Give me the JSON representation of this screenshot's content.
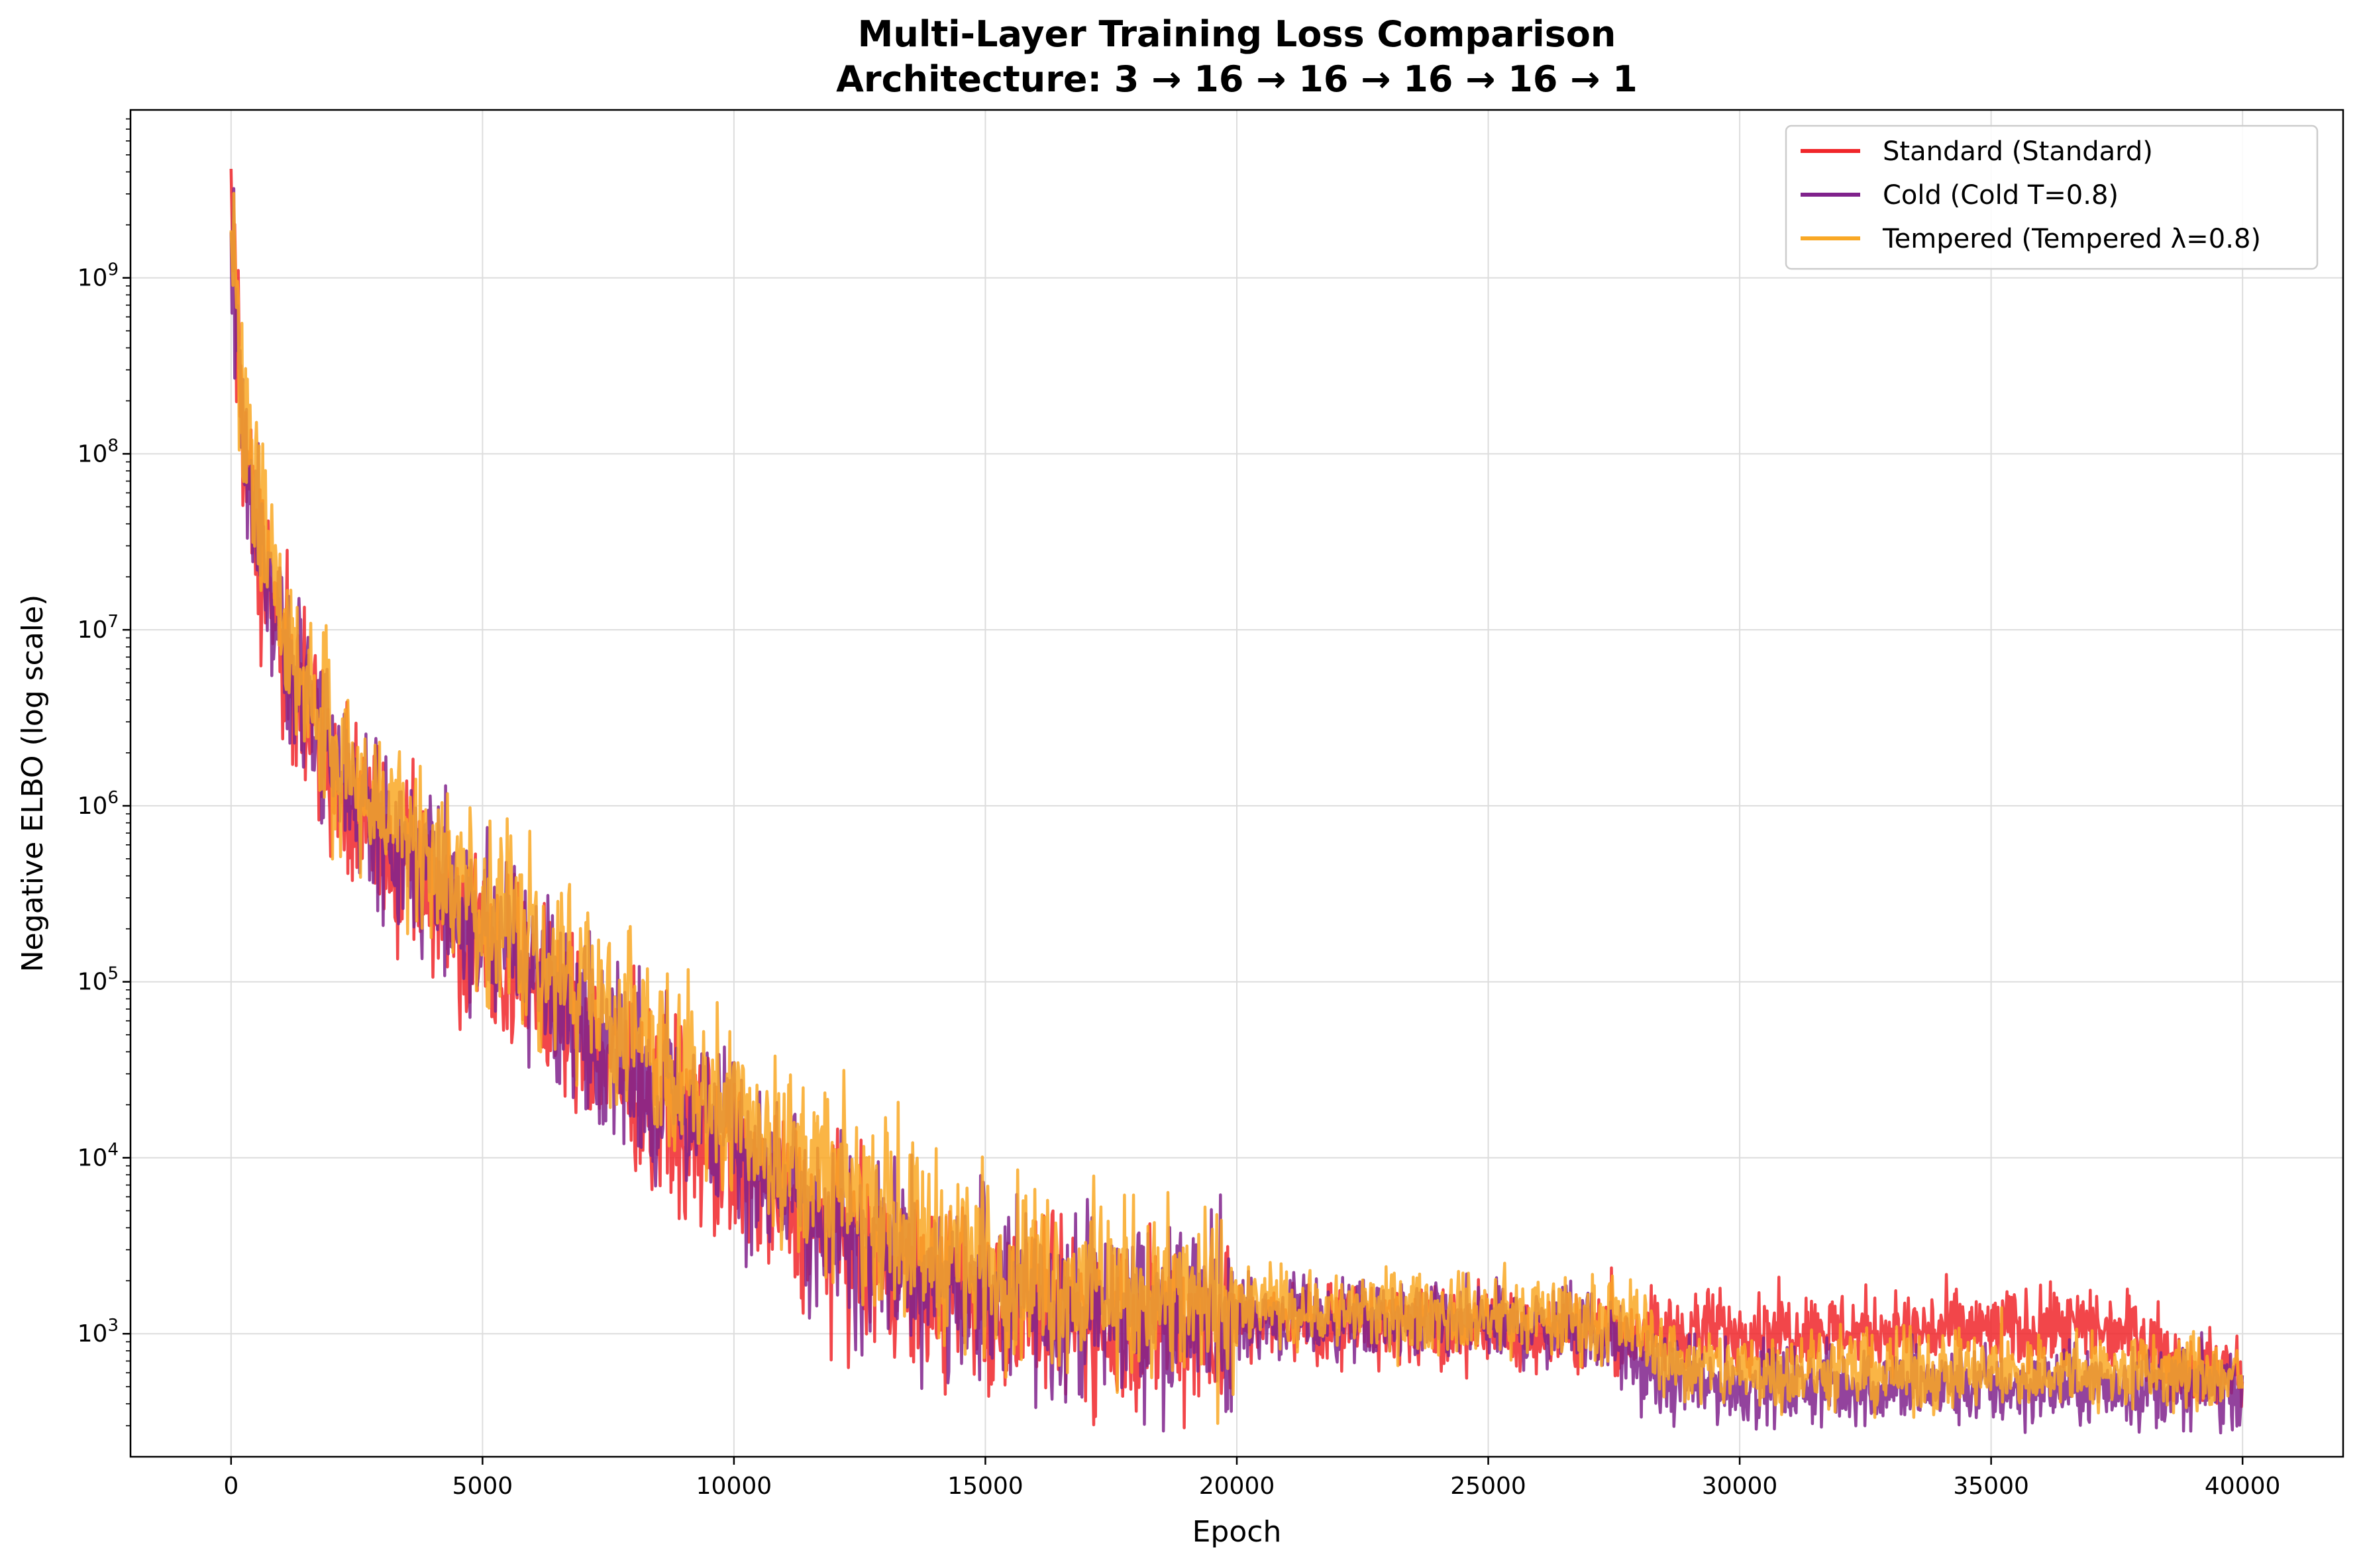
{
  "chart_data": {
    "type": "line",
    "title": "Multi-Layer Training Loss Comparison",
    "subtitle": "Architecture: 3 → 16 → 16 → 16 → 16 → 1",
    "xlabel": "Epoch",
    "ylabel": "Negative ELBO (log scale)",
    "xlim": [
      -2000,
      42000
    ],
    "ylim": [
      200,
      9000000000
    ],
    "yscale": "log",
    "grid": true,
    "legend_position": "top-right",
    "x_ticks": [
      0,
      5000,
      10000,
      15000,
      20000,
      25000,
      30000,
      35000,
      40000
    ],
    "x_tick_labels": [
      "0",
      "5000",
      "10000",
      "15000",
      "20000",
      "25000",
      "30000",
      "35000",
      "40000"
    ],
    "y_ticks": [
      1000,
      10000,
      100000,
      1000000,
      10000000,
      100000000,
      1000000000
    ],
    "y_tick_bases": [
      "10",
      "10",
      "10",
      "10",
      "10",
      "10",
      "10"
    ],
    "y_tick_exponents": [
      "3",
      "4",
      "5",
      "6",
      "7",
      "8",
      "9"
    ],
    "series": [
      {
        "name": "Standard (Standard)",
        "color": "#f0262a",
        "x": [
          0,
          200,
          500,
          1000,
          2000,
          3000,
          4000,
          5000,
          6000,
          7000,
          8000,
          9000,
          10000,
          11000,
          12000,
          13000,
          14000,
          15000,
          16000,
          17000,
          18000,
          19000,
          20000,
          22000,
          24000,
          26000,
          27500,
          28000,
          28500,
          29000,
          30000,
          32000,
          34000,
          36000,
          38000,
          38500,
          39000,
          40000
        ],
        "y": [
          2500000000,
          150000000,
          40000000,
          8000000,
          1500000,
          700000,
          350000,
          180000,
          90000,
          50000,
          28000,
          16000,
          9000,
          5500,
          3500,
          2300,
          1800,
          1500,
          1400,
          1300,
          1250,
          1200,
          1180,
          1150,
          1120,
          1080,
          1020,
          1000,
          1000,
          1050,
          1050,
          1050,
          1050,
          1050,
          1050,
          700,
          650,
          600
        ],
        "noise": 0.55
      },
      {
        "name": "Cold (Cold T=0.8)",
        "color": "#80228c",
        "x": [
          0,
          200,
          500,
          1000,
          2000,
          3000,
          4000,
          5000,
          6000,
          7000,
          8000,
          9000,
          10000,
          11000,
          12000,
          13000,
          14000,
          15000,
          16000,
          17000,
          18000,
          19000,
          20000,
          22000,
          24000,
          26000,
          27000,
          27500,
          28000,
          28500,
          29000,
          30000,
          32000,
          34000,
          36000,
          38000,
          40000
        ],
        "y": [
          2500000000,
          150000000,
          40000000,
          9000000,
          1800000,
          800000,
          420000,
          220000,
          110000,
          60000,
          33000,
          19000,
          11000,
          6500,
          4200,
          2800,
          2100,
          1700,
          1500,
          1400,
          1350,
          1300,
          1250,
          1200,
          1150,
          1100,
          1080,
          900,
          650,
          560,
          530,
          510,
          500,
          500,
          500,
          500,
          500
        ],
        "noise": 0.55
      },
      {
        "name": "Tempered (Tempered λ=0.8)",
        "color": "#f9a825",
        "x": [
          0,
          200,
          500,
          1000,
          2000,
          3000,
          4000,
          5000,
          6000,
          7000,
          8000,
          9000,
          10000,
          11000,
          12000,
          13000,
          14000,
          15000,
          16000,
          17000,
          18000,
          19000,
          20000,
          22000,
          24000,
          26000,
          27500,
          28000,
          28500,
          29000,
          30000,
          32000,
          34000,
          36000,
          38000,
          39000,
          40000
        ],
        "y": [
          3500000000,
          180000000,
          50000000,
          10000000,
          2200000,
          1000000,
          550000,
          300000,
          160000,
          90000,
          50000,
          30000,
          18000,
          11000,
          7000,
          4700,
          3300,
          2600,
          2200,
          1900,
          1700,
          1550,
          1450,
          1350,
          1300,
          1250,
          1200,
          1150,
          750,
          650,
          620,
          610,
          600,
          600,
          600,
          600,
          580
        ],
        "noise": 0.55
      }
    ]
  }
}
